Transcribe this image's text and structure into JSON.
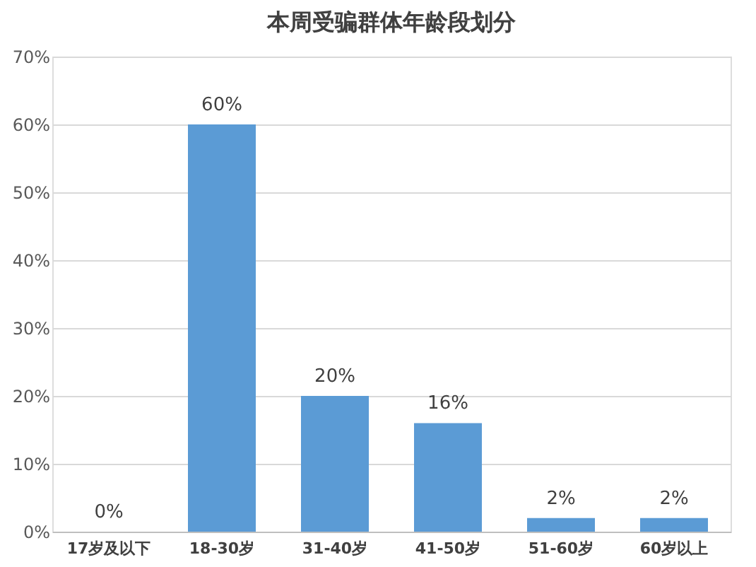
{
  "chart_data": {
    "type": "bar",
    "title": "本周受骗群体年龄段划分",
    "categories": [
      "17岁及以下",
      "18-30岁",
      "31-40岁",
      "41-50岁",
      "51-60岁",
      "60岁以上"
    ],
    "values": [
      0,
      60,
      20,
      16,
      2,
      2
    ],
    "value_labels": [
      "0%",
      "60%",
      "20%",
      "16%",
      "2%",
      "2%"
    ],
    "color": "#5b9bd5",
    "ylim": [
      0,
      70
    ],
    "yticks": [
      {
        "value": 0,
        "label": "0%"
      },
      {
        "value": 10,
        "label": "10%"
      },
      {
        "value": 20,
        "label": "20%"
      },
      {
        "value": 30,
        "label": "30%"
      },
      {
        "value": 40,
        "label": "40%"
      },
      {
        "value": 50,
        "label": "50%"
      },
      {
        "value": 60,
        "label": "60%"
      },
      {
        "value": 70,
        "label": "70%"
      }
    ],
    "grid": "y"
  }
}
